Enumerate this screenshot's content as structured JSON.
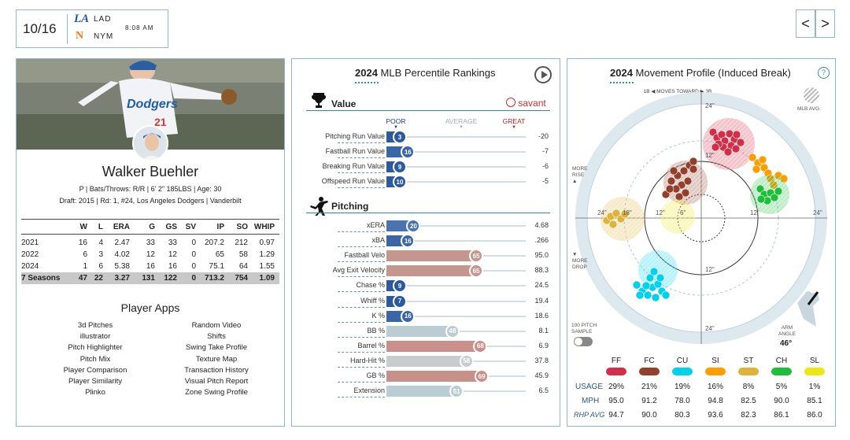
{
  "scoreboard": {
    "date": "10/16",
    "away_team": "LAD",
    "home_team": "NYM",
    "time": "8:08 AM"
  },
  "nav": {
    "prev": "<",
    "next": ">"
  },
  "player": {
    "name": "Walker Buehler",
    "line1": "P | Bats/Throws: R/R | 6' 2\" 185LBS | Age: 30",
    "line2_prefix": "Draft: 2015 | Rd: 1, #24, ",
    "line2_team": "Los Angeles Dodgers",
    "line2_suffix": " | Vanderbilt"
  },
  "stats": {
    "headers": [
      "",
      "W",
      "L",
      "ERA",
      "G",
      "GS",
      "SV",
      "IP",
      "SO",
      "WHIP"
    ],
    "rows": [
      [
        "2021",
        "16",
        "4",
        "2.47",
        "33",
        "33",
        "0",
        "207.2",
        "212",
        "0.97"
      ],
      [
        "2022",
        "6",
        "3",
        "4.02",
        "12",
        "12",
        "0",
        "65",
        "58",
        "1.29"
      ],
      [
        "2024",
        "1",
        "6",
        "5.38",
        "16",
        "16",
        "0",
        "75.1",
        "64",
        "1.55"
      ]
    ],
    "total": [
      "7 Seasons",
      "47",
      "22",
      "3.27",
      "131",
      "122",
      "0",
      "713.2",
      "754",
      "1.09"
    ]
  },
  "apps": {
    "title": "Player Apps",
    "left": [
      "3d Pitches",
      "illustrator",
      "Pitch Highlighter",
      "Pitch Mix",
      "Player Comparison",
      "Player Similarity",
      "Plinko"
    ],
    "right": [
      "Random Video",
      "Shifts",
      "Swing Take Profile",
      "Texture Map",
      "Transaction History",
      "Visual Pitch Report",
      "Zone Swing Profile"
    ]
  },
  "rankings": {
    "year": "2024",
    "title": "MLB Percentile Rankings",
    "value_section": "Value",
    "pitching_section": "Pitching",
    "savant": "savant",
    "poor": "POOR",
    "average": "AVERAGE",
    "great": "GREAT",
    "value_rows": [
      {
        "label": "Pitching Run Value",
        "pct": 3,
        "value": "-20",
        "color": "#2c5aa0"
      },
      {
        "label": "Fastball Run Value",
        "pct": 16,
        "value": "-7",
        "color": "#3a66a8"
      },
      {
        "label": "Breaking Run Value",
        "pct": 9,
        "value": "-6",
        "color": "#2c5aa0"
      },
      {
        "label": "Offspeed Run Value",
        "pct": 10,
        "value": "-5",
        "color": "#2c5aa0"
      }
    ],
    "pitching_rows": [
      {
        "label": "xERA",
        "pct": 20,
        "value": "4.68",
        "color": "#4a73b0"
      },
      {
        "label": "xBA",
        "pct": 16,
        "value": ".266",
        "color": "#3a66a8"
      },
      {
        "label": "Fastball Velo",
        "pct": 65,
        "value": "95.0",
        "color": "#c4968e"
      },
      {
        "label": "Avg Exit Velocity",
        "pct": 65,
        "value": "88.3",
        "color": "#c4968e"
      },
      {
        "label": "Chase %",
        "pct": 9,
        "value": "24.5",
        "color": "#2c5aa0"
      },
      {
        "label": "Whiff %",
        "pct": 7,
        "value": "19.4",
        "color": "#2c5aa0"
      },
      {
        "label": "K %",
        "pct": 16,
        "value": "18.6",
        "color": "#3a66a8"
      },
      {
        "label": "BB %",
        "pct": 48,
        "value": "8.1",
        "color": "#b9cdd3"
      },
      {
        "label": "Barrel %",
        "pct": 68,
        "value": "6.9",
        "color": "#c9908a"
      },
      {
        "label": "Hard-Hit %",
        "pct": 58,
        "value": "37.8",
        "color": "#c8cccc"
      },
      {
        "label": "GB %",
        "pct": 69,
        "value": "45.9",
        "color": "#c9908a"
      },
      {
        "label": "Extension",
        "pct": 51,
        "value": "6.5",
        "color": "#b9cdd3"
      }
    ]
  },
  "movement": {
    "year": "2024",
    "title": "Movement Profile (Induced Break)",
    "moves_toward": "1B ◀  MOVES TOWARD  ▶ 3B",
    "mlb_avg": "MLB AVG.",
    "more_rise": "MORE RISE",
    "more_drop": "MORE DROP",
    "pitch_sample": "100 PITCH SAMPLE",
    "arm_angle_label": "ARM ANGLE",
    "arm_angle": "46°",
    "ring_labels": [
      "24\"",
      "12\"",
      "6\"",
      "12\"",
      "18\"",
      "24\"",
      "24\"",
      "12\"",
      "12\"",
      "24\"",
      "24\""
    ],
    "table": {
      "pitch_types": [
        "FF",
        "FC",
        "CU",
        "SI",
        "ST",
        "CH",
        "SL"
      ],
      "colors": [
        "#d22d49",
        "#933f2c",
        "#00d1ed",
        "#fe9d00",
        "#ddb33a",
        "#1dbe3a",
        "#eee716"
      ],
      "usage_label": "USAGE",
      "mph_label": "MPH",
      "rhp_label": "RHP AVG",
      "usage": [
        "29%",
        "21%",
        "19%",
        "16%",
        "8%",
        "5%",
        "1%"
      ],
      "mph": [
        "95.0",
        "91.2",
        "78.0",
        "94.8",
        "82.5",
        "90.0",
        "85.1"
      ],
      "rhp_avg": [
        "94.7",
        "90.0",
        "80.3",
        "93.6",
        "82.3",
        "86.1",
        "86.0"
      ]
    }
  }
}
